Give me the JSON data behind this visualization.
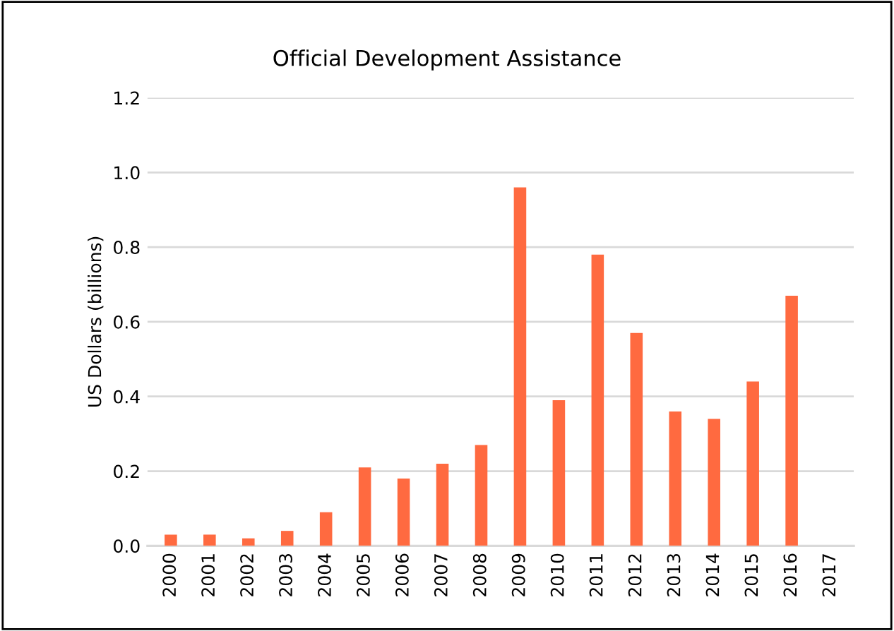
{
  "chart_data": {
    "type": "bar",
    "title": "Official Development Assistance",
    "ylabel": "US Dollars (billions)",
    "categories": [
      "2000",
      "2001",
      "2002",
      "2003",
      "2004",
      "2005",
      "2006",
      "2007",
      "2008",
      "2009",
      "2010",
      "2011",
      "2012",
      "2013",
      "2014",
      "2015",
      "2016",
      "2017"
    ],
    "values": [
      0.03,
      0.03,
      0.02,
      0.04,
      0.09,
      0.21,
      0.18,
      0.22,
      0.27,
      0.96,
      0.39,
      0.78,
      0.57,
      0.36,
      0.34,
      0.44,
      0.67,
      null
    ],
    "color": "#ff6a40",
    "ylim": [
      0,
      1.2
    ],
    "yticks": [
      {
        "value": 0,
        "label": "0.0"
      },
      {
        "value": 0.2,
        "label": "0.2"
      },
      {
        "value": 0.4,
        "label": "0.4"
      },
      {
        "value": 0.6,
        "label": "0.6"
      },
      {
        "value": 0.8,
        "label": "0.8"
      },
      {
        "value": 1.0,
        "label": "1.0"
      },
      {
        "value": 1.2,
        "label": "1.2"
      }
    ],
    "grid": "y"
  }
}
